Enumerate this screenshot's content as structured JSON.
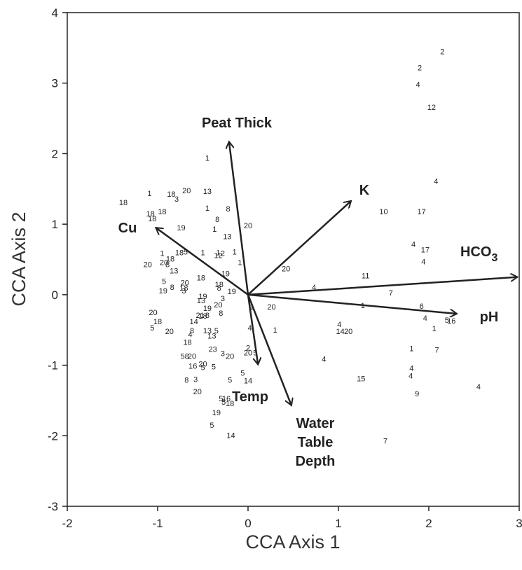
{
  "chart_data": {
    "type": "scatter",
    "xlabel": "CCA Axis 1",
    "ylabel": "CCA Axis 2",
    "xlim": [
      -2,
      3
    ],
    "ylim": [
      -3,
      4
    ],
    "xticks": [
      "-2",
      "-1",
      "0",
      "1",
      "2",
      "3"
    ],
    "yticks": [
      "-3",
      "-2",
      "-1",
      "0",
      "1",
      "2",
      "3",
      "4"
    ],
    "grid": false,
    "vectors": [
      {
        "name": "Peat Thick",
        "x": -0.21,
        "y": 2.17
      },
      {
        "name": "K",
        "x": 1.14,
        "y": 1.33
      },
      {
        "name": "Cu",
        "x": -1.02,
        "y": 0.95
      },
      {
        "name": "HCO",
        "subscript": "3",
        "x": 2.98,
        "y": 0.25
      },
      {
        "name": "pH",
        "x": 2.31,
        "y": -0.27
      },
      {
        "name": "Temp",
        "x": 0.11,
        "y": -0.99
      },
      {
        "name": "Water\nTable\nDepth",
        "x": 0.48,
        "y": -1.57
      }
    ],
    "points": [
      {
        "x": 2.15,
        "y": 3.45,
        "label": "2"
      },
      {
        "x": 1.9,
        "y": 3.22,
        "label": "2"
      },
      {
        "x": 1.88,
        "y": 2.98,
        "label": "4"
      },
      {
        "x": 2.03,
        "y": 2.66,
        "label": "12"
      },
      {
        "x": 2.08,
        "y": 1.61,
        "label": "4"
      },
      {
        "x": 1.92,
        "y": 1.18,
        "label": "17"
      },
      {
        "x": 1.5,
        "y": 1.18,
        "label": "10"
      },
      {
        "x": 1.83,
        "y": 0.72,
        "label": "4"
      },
      {
        "x": 1.96,
        "y": 0.64,
        "label": "17"
      },
      {
        "x": 1.94,
        "y": 0.47,
        "label": "4"
      },
      {
        "x": 1.3,
        "y": 0.27,
        "label": "11"
      },
      {
        "x": 1.58,
        "y": 0.03,
        "label": "7"
      },
      {
        "x": 0.73,
        "y": 0.11,
        "label": "4"
      },
      {
        "x": 1.27,
        "y": -0.15,
        "label": "1"
      },
      {
        "x": 1.92,
        "y": -0.16,
        "label": "6"
      },
      {
        "x": 1.96,
        "y": -0.33,
        "label": "4"
      },
      {
        "x": 2.25,
        "y": -0.37,
        "label": "16"
      },
      {
        "x": 2.2,
        "y": -0.36,
        "label": "5"
      },
      {
        "x": 2.06,
        "y": -0.48,
        "label": "1"
      },
      {
        "x": 1.01,
        "y": -0.42,
        "label": "4"
      },
      {
        "x": 1.02,
        "y": -0.52,
        "label": "14"
      },
      {
        "x": 1.11,
        "y": -0.52,
        "label": "20"
      },
      {
        "x": 0.3,
        "y": -0.5,
        "label": "1"
      },
      {
        "x": 1.81,
        "y": -0.76,
        "label": "1"
      },
      {
        "x": 2.09,
        "y": -0.78,
        "label": "7"
      },
      {
        "x": 0.84,
        "y": -0.91,
        "label": "4"
      },
      {
        "x": 1.81,
        "y": -1.04,
        "label": "4"
      },
      {
        "x": 1.8,
        "y": -1.15,
        "label": "4"
      },
      {
        "x": 1.25,
        "y": -1.19,
        "label": "15"
      },
      {
        "x": 2.55,
        "y": -1.3,
        "label": "4"
      },
      {
        "x": 1.87,
        "y": -1.4,
        "label": "9"
      },
      {
        "x": 1.52,
        "y": -2.07,
        "label": "7"
      },
      {
        "x": 0.04,
        "y": -0.17,
        "label": "1"
      },
      {
        "x": 0.26,
        "y": -0.17,
        "label": "20"
      },
      {
        "x": 0.42,
        "y": 0.37,
        "label": "20"
      },
      {
        "x": -1.38,
        "y": 1.31,
        "label": "18"
      },
      {
        "x": -1.09,
        "y": 1.44,
        "label": "1"
      },
      {
        "x": -0.85,
        "y": 1.43,
        "label": "18"
      },
      {
        "x": -0.79,
        "y": 1.36,
        "label": "3"
      },
      {
        "x": -0.68,
        "y": 1.48,
        "label": "20"
      },
      {
        "x": -0.45,
        "y": 1.47,
        "label": "13"
      },
      {
        "x": -0.45,
        "y": 1.94,
        "label": "1"
      },
      {
        "x": -1.08,
        "y": 1.15,
        "label": "18"
      },
      {
        "x": -1.06,
        "y": 1.08,
        "label": "18"
      },
      {
        "x": -0.95,
        "y": 1.18,
        "label": "18"
      },
      {
        "x": -0.45,
        "y": 1.23,
        "label": "1"
      },
      {
        "x": -0.22,
        "y": 1.22,
        "label": "8"
      },
      {
        "x": -0.34,
        "y": 1.07,
        "label": "8"
      },
      {
        "x": -0.74,
        "y": 0.95,
        "label": "19"
      },
      {
        "x": -0.37,
        "y": 0.93,
        "label": "1"
      },
      {
        "x": 0.0,
        "y": 0.98,
        "label": "20"
      },
      {
        "x": -0.23,
        "y": 0.83,
        "label": "13"
      },
      {
        "x": -0.95,
        "y": 0.59,
        "label": "1"
      },
      {
        "x": -0.76,
        "y": 0.6,
        "label": "18"
      },
      {
        "x": -0.69,
        "y": 0.61,
        "label": "5"
      },
      {
        "x": -0.86,
        "y": 0.51,
        "label": "18"
      },
      {
        "x": -0.5,
        "y": 0.6,
        "label": "1"
      },
      {
        "x": -0.33,
        "y": 0.6,
        "label": "1"
      },
      {
        "x": -0.33,
        "y": 0.56,
        "label": "12"
      },
      {
        "x": -0.28,
        "y": 0.59,
        "label": "2"
      },
      {
        "x": -0.15,
        "y": 0.61,
        "label": "1"
      },
      {
        "x": -0.09,
        "y": 0.46,
        "label": "1"
      },
      {
        "x": -1.11,
        "y": 0.43,
        "label": "20"
      },
      {
        "x": -0.93,
        "y": 0.46,
        "label": "20"
      },
      {
        "x": -0.89,
        "y": 0.43,
        "label": "8"
      },
      {
        "x": -0.82,
        "y": 0.34,
        "label": "13"
      },
      {
        "x": -0.25,
        "y": 0.3,
        "label": "19"
      },
      {
        "x": -0.93,
        "y": 0.19,
        "label": "5"
      },
      {
        "x": -0.7,
        "y": 0.17,
        "label": "20"
      },
      {
        "x": -0.52,
        "y": 0.24,
        "label": "18"
      },
      {
        "x": -0.32,
        "y": 0.15,
        "label": "18"
      },
      {
        "x": -0.94,
        "y": 0.06,
        "label": "19"
      },
      {
        "x": -0.84,
        "y": 0.11,
        "label": "8"
      },
      {
        "x": -0.71,
        "y": 0.1,
        "label": "18"
      },
      {
        "x": -0.71,
        "y": 0.06,
        "label": "3"
      },
      {
        "x": -0.32,
        "y": 0.1,
        "label": "8"
      },
      {
        "x": -0.18,
        "y": 0.05,
        "label": "19"
      },
      {
        "x": -0.5,
        "y": -0.02,
        "label": "19"
      },
      {
        "x": -0.52,
        "y": -0.08,
        "label": "13"
      },
      {
        "x": -0.28,
        "y": -0.05,
        "label": "3"
      },
      {
        "x": -0.33,
        "y": -0.14,
        "label": "20"
      },
      {
        "x": -0.45,
        "y": -0.19,
        "label": "19"
      },
      {
        "x": -1.05,
        "y": -0.25,
        "label": "20"
      },
      {
        "x": -0.53,
        "y": -0.29,
        "label": "21"
      },
      {
        "x": -0.45,
        "y": -0.29,
        "label": "8"
      },
      {
        "x": -0.5,
        "y": -0.3,
        "label": "18"
      },
      {
        "x": -0.3,
        "y": -0.26,
        "label": "8"
      },
      {
        "x": -0.6,
        "y": -0.38,
        "label": "14"
      },
      {
        "x": -1.0,
        "y": -0.38,
        "label": "18"
      },
      {
        "x": -1.06,
        "y": -0.47,
        "label": "5"
      },
      {
        "x": -0.87,
        "y": -0.52,
        "label": "20"
      },
      {
        "x": -0.62,
        "y": -0.51,
        "label": "8"
      },
      {
        "x": -0.64,
        "y": -0.56,
        "label": "4"
      },
      {
        "x": -0.45,
        "y": -0.51,
        "label": "13"
      },
      {
        "x": -0.35,
        "y": -0.51,
        "label": "5"
      },
      {
        "x": -0.4,
        "y": -0.58,
        "label": "13"
      },
      {
        "x": 0.02,
        "y": -0.47,
        "label": "4"
      },
      {
        "x": -0.67,
        "y": -0.67,
        "label": "18"
      },
      {
        "x": -0.39,
        "y": -0.77,
        "label": "23"
      },
      {
        "x": -0.28,
        "y": -0.83,
        "label": "3"
      },
      {
        "x": -0.2,
        "y": -0.87,
        "label": "20"
      },
      {
        "x": 0.0,
        "y": -0.75,
        "label": "2"
      },
      {
        "x": 0.0,
        "y": -0.82,
        "label": "20"
      },
      {
        "x": 0.08,
        "y": -0.82,
        "label": "5"
      },
      {
        "x": -0.7,
        "y": -0.87,
        "label": "58"
      },
      {
        "x": -0.62,
        "y": -0.87,
        "label": "20"
      },
      {
        "x": -0.5,
        "y": -0.98,
        "label": "20"
      },
      {
        "x": -0.61,
        "y": -1.01,
        "label": "16"
      },
      {
        "x": -0.5,
        "y": -1.03,
        "label": "5"
      },
      {
        "x": -0.38,
        "y": -1.02,
        "label": "5"
      },
      {
        "x": -0.68,
        "y": -1.21,
        "label": "8"
      },
      {
        "x": -0.58,
        "y": -1.2,
        "label": "3"
      },
      {
        "x": -0.2,
        "y": -1.21,
        "label": "5"
      },
      {
        "x": -0.06,
        "y": -1.11,
        "label": "5"
      },
      {
        "x": 0.0,
        "y": -1.22,
        "label": "14"
      },
      {
        "x": -0.56,
        "y": -1.37,
        "label": "20"
      },
      {
        "x": -0.3,
        "y": -1.47,
        "label": "5"
      },
      {
        "x": -0.24,
        "y": -1.47,
        "label": "16"
      },
      {
        "x": -0.27,
        "y": -1.52,
        "label": "5"
      },
      {
        "x": -0.2,
        "y": -1.54,
        "label": "18"
      },
      {
        "x": -0.35,
        "y": -1.67,
        "label": "19"
      },
      {
        "x": -0.4,
        "y": -1.85,
        "label": "5"
      },
      {
        "x": -0.19,
        "y": -1.99,
        "label": "14"
      }
    ]
  }
}
